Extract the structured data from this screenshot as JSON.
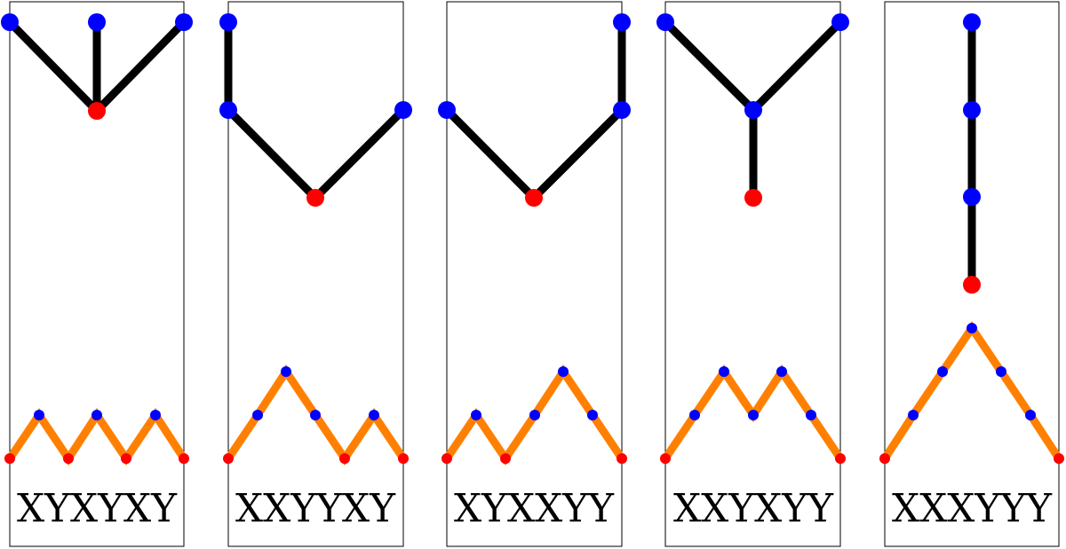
{
  "colors": {
    "edge": "#000000",
    "path": "#ff8000",
    "node_root": "#ff0000",
    "node_other": "#0000ff",
    "border": "#000000"
  },
  "panels": [
    {
      "word": "XYXYXY",
      "tree": {
        "root": "r",
        "edges": [
          [
            "r",
            "a"
          ],
          [
            "r",
            "b"
          ],
          [
            "r",
            "c"
          ]
        ],
        "colors": {
          "r": "red",
          "a": "blue",
          "b": "blue",
          "c": "blue"
        }
      }
    },
    {
      "word": "XXYYXY",
      "tree": {
        "root": "r",
        "edges": [
          [
            "r",
            "a"
          ],
          [
            "a",
            "b"
          ],
          [
            "r",
            "c"
          ]
        ],
        "colors": {
          "r": "red",
          "a": "blue",
          "b": "blue",
          "c": "blue"
        }
      }
    },
    {
      "word": "XYXXYY",
      "tree": {
        "root": "r",
        "edges": [
          [
            "r",
            "a"
          ],
          [
            "r",
            "b"
          ],
          [
            "b",
            "c"
          ]
        ],
        "colors": {
          "r": "red",
          "a": "blue",
          "b": "blue",
          "c": "blue"
        }
      }
    },
    {
      "word": "XXYXYY",
      "tree": {
        "root": "r",
        "edges": [
          [
            "r",
            "a"
          ],
          [
            "a",
            "b"
          ],
          [
            "a",
            "c"
          ]
        ],
        "colors": {
          "r": "red",
          "a": "blue",
          "b": "blue",
          "c": "blue"
        }
      }
    },
    {
      "word": "XXXYYY",
      "tree": {
        "root": "r",
        "edges": [
          [
            "r",
            "a"
          ],
          [
            "a",
            "b"
          ],
          [
            "b",
            "c"
          ]
        ],
        "colors": {
          "r": "red",
          "a": "blue",
          "b": "blue",
          "c": "blue"
        }
      }
    }
  ]
}
